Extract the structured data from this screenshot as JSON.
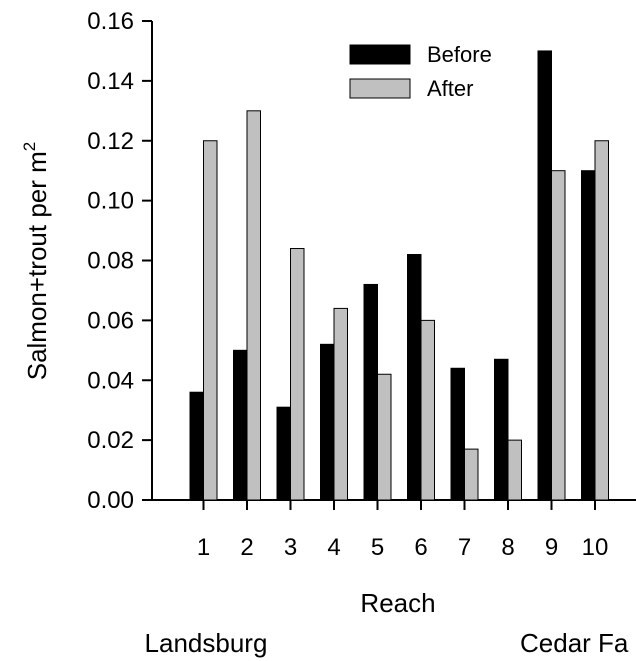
{
  "chart_data": {
    "type": "bar",
    "xlabel": "Reach",
    "ylabel_main": "Salmon+trout per m",
    "ylabel_superscript": "2",
    "categories": [
      "1",
      "2",
      "3",
      "4",
      "5",
      "6",
      "7",
      "8",
      "9",
      "10"
    ],
    "series": [
      {
        "name": "Before",
        "color": "#000000",
        "values": [
          0.036,
          0.05,
          0.031,
          0.052,
          0.072,
          0.082,
          0.044,
          0.047,
          0.15,
          0.11
        ]
      },
      {
        "name": "After",
        "color": "#c0c0c0",
        "values": [
          0.12,
          0.13,
          0.084,
          0.064,
          0.042,
          0.06,
          0.017,
          0.02,
          0.11,
          0.12
        ]
      }
    ],
    "yticks": [
      "0.00",
      "0.02",
      "0.04",
      "0.06",
      "0.08",
      "0.10",
      "0.12",
      "0.14",
      "0.16"
    ],
    "ylim": [
      0,
      0.16
    ],
    "grid": false,
    "legend_position": "top-right",
    "location_labels": {
      "left": "Landsburg",
      "right": "Cedar Fa"
    }
  }
}
